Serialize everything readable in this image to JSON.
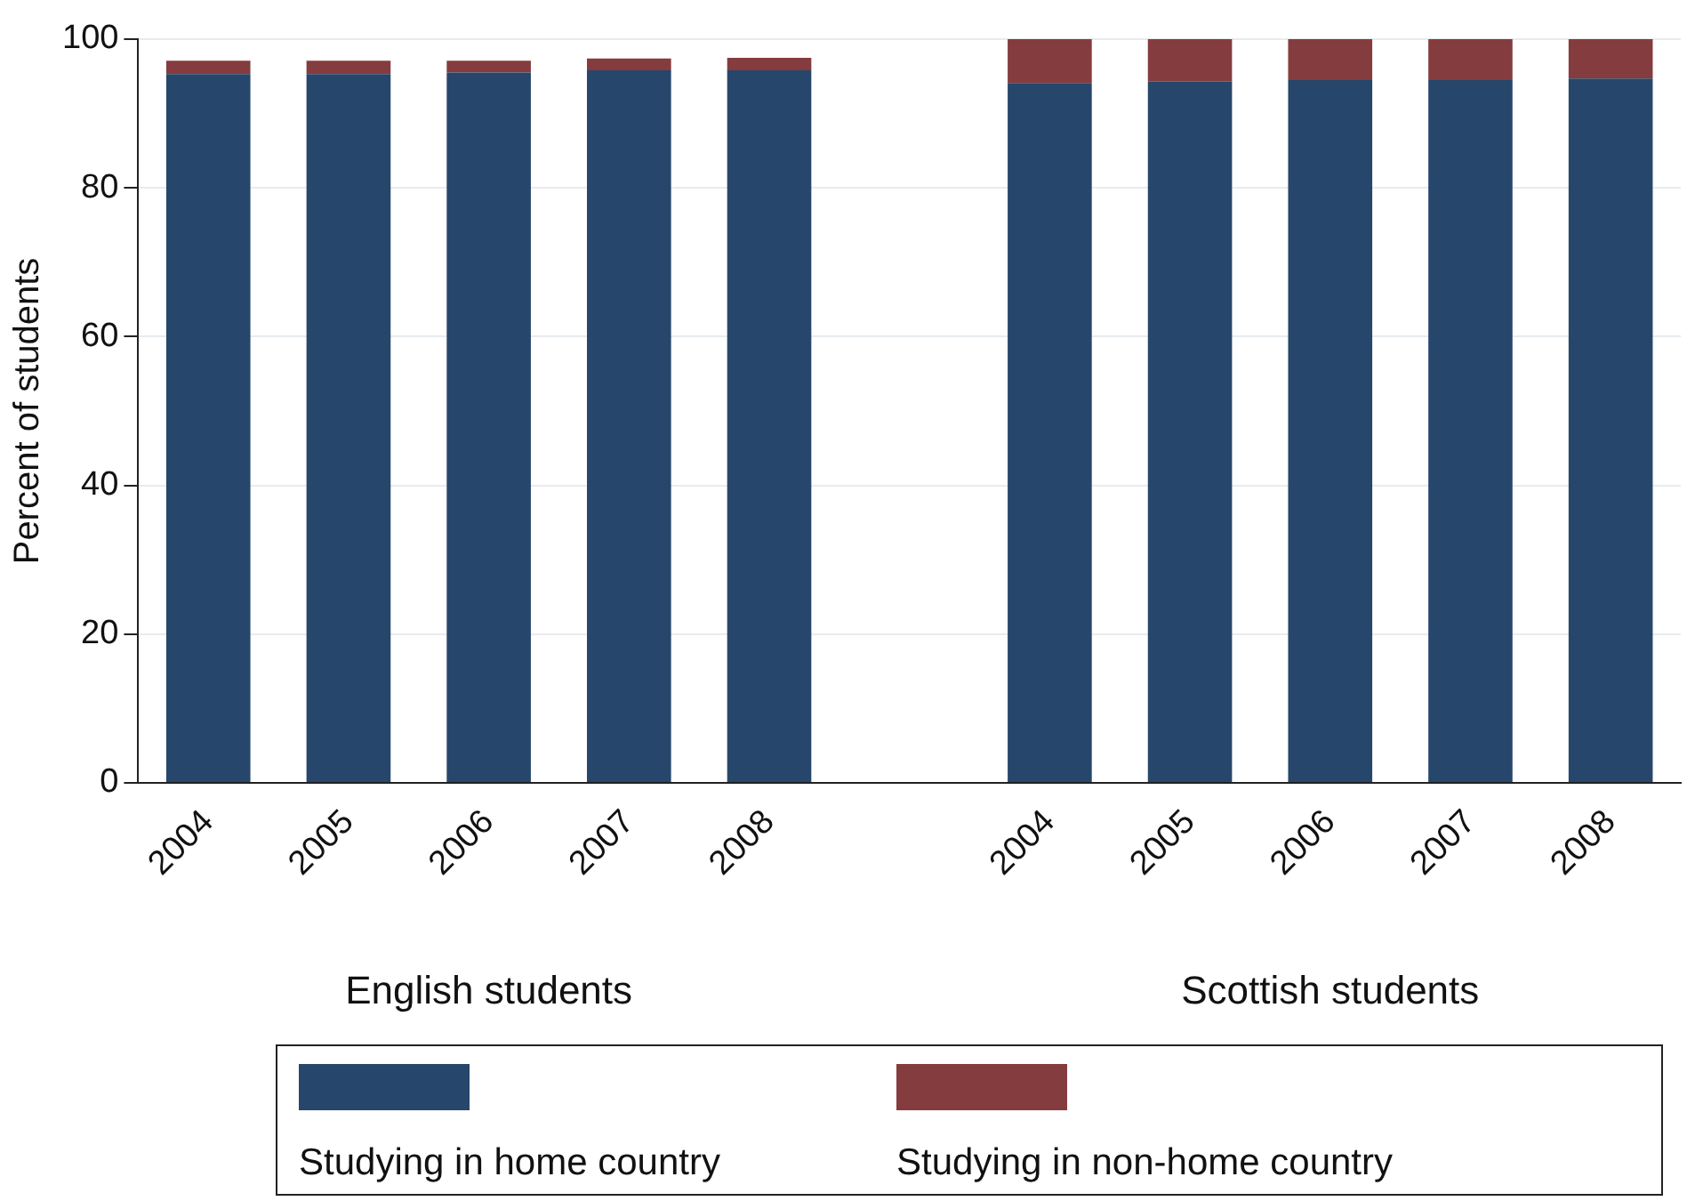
{
  "chart_data": {
    "type": "bar",
    "stacked": true,
    "ylabel": "Percent of students",
    "categories": [
      "2004",
      "2005",
      "2006",
      "2007",
      "2008",
      null,
      "2004",
      "2005",
      "2006",
      "2007",
      "2008"
    ],
    "series": [
      {
        "name": "Studying in home country",
        "color": "#26476b",
        "values": [
          95.3,
          95.3,
          95.5,
          95.8,
          95.8,
          null,
          94.1,
          94.3,
          94.5,
          94.5,
          94.7
        ]
      },
      {
        "name": "Studying in non-home country",
        "color": "#853c3f",
        "values": [
          1.8,
          1.8,
          1.6,
          1.6,
          1.7,
          null,
          5.9,
          5.7,
          5.5,
          5.5,
          5.3
        ]
      }
    ],
    "ylim": [
      0,
      100
    ],
    "yticks": [
      0,
      20,
      40,
      60,
      80,
      100
    ],
    "grid": "y",
    "legend": "bottom",
    "annotations": [
      "English students",
      "Scottish students"
    ]
  }
}
